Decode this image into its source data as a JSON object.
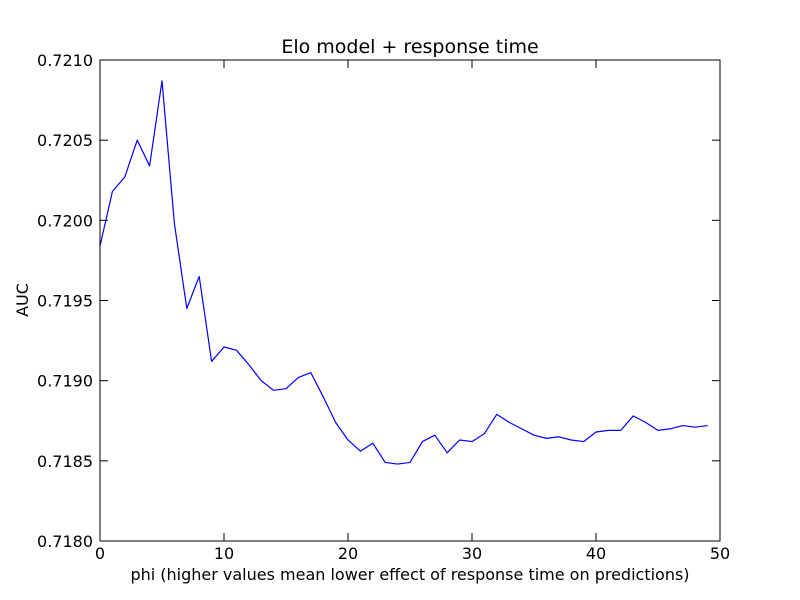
{
  "chart_data": {
    "type": "line",
    "title": "Elo model + response time",
    "xlabel": "phi (higher values mean lower effect of response time on predictions)",
    "ylabel": "AUC",
    "xlim": [
      0,
      50
    ],
    "ylim": [
      0.718,
      0.721
    ],
    "x_ticks": [
      0,
      10,
      20,
      30,
      40,
      50
    ],
    "x_tick_labels": [
      "0",
      "10",
      "20",
      "30",
      "40",
      "50"
    ],
    "y_ticks": [
      0.718,
      0.7185,
      0.719,
      0.7195,
      0.72,
      0.7205,
      0.721
    ],
    "y_tick_labels": [
      "0.7180",
      "0.7185",
      "0.7190",
      "0.7195",
      "0.7200",
      "0.7205",
      "0.7210"
    ],
    "grid": false,
    "series": [
      {
        "color": "#0000ff",
        "x": [
          0,
          1,
          2,
          3,
          4,
          5,
          6,
          7,
          8,
          9,
          10,
          11,
          12,
          13,
          14,
          15,
          16,
          17,
          18,
          19,
          20,
          21,
          22,
          23,
          24,
          25,
          26,
          27,
          28,
          29,
          30,
          31,
          32,
          33,
          34,
          35,
          36,
          37,
          38,
          39,
          40,
          41,
          42,
          43,
          44,
          45,
          46,
          47,
          48,
          49
        ],
        "values": [
          0.71984,
          0.72018,
          0.72027,
          0.7205,
          0.72034,
          0.72087,
          0.71998,
          0.71945,
          0.71965,
          0.71912,
          0.71921,
          0.71919,
          0.7191,
          0.719,
          0.71894,
          0.71895,
          0.71902,
          0.71905,
          0.7189,
          0.71874,
          0.71863,
          0.71856,
          0.71861,
          0.71849,
          0.71848,
          0.71849,
          0.71862,
          0.71866,
          0.71855,
          0.71863,
          0.71862,
          0.71867,
          0.71879,
          0.71874,
          0.7187,
          0.71866,
          0.71864,
          0.71865,
          0.71863,
          0.71862,
          0.71868,
          0.71869,
          0.71869,
          0.71878,
          0.71874,
          0.71869,
          0.7187,
          0.71872,
          0.71871,
          0.71872
        ]
      }
    ]
  }
}
